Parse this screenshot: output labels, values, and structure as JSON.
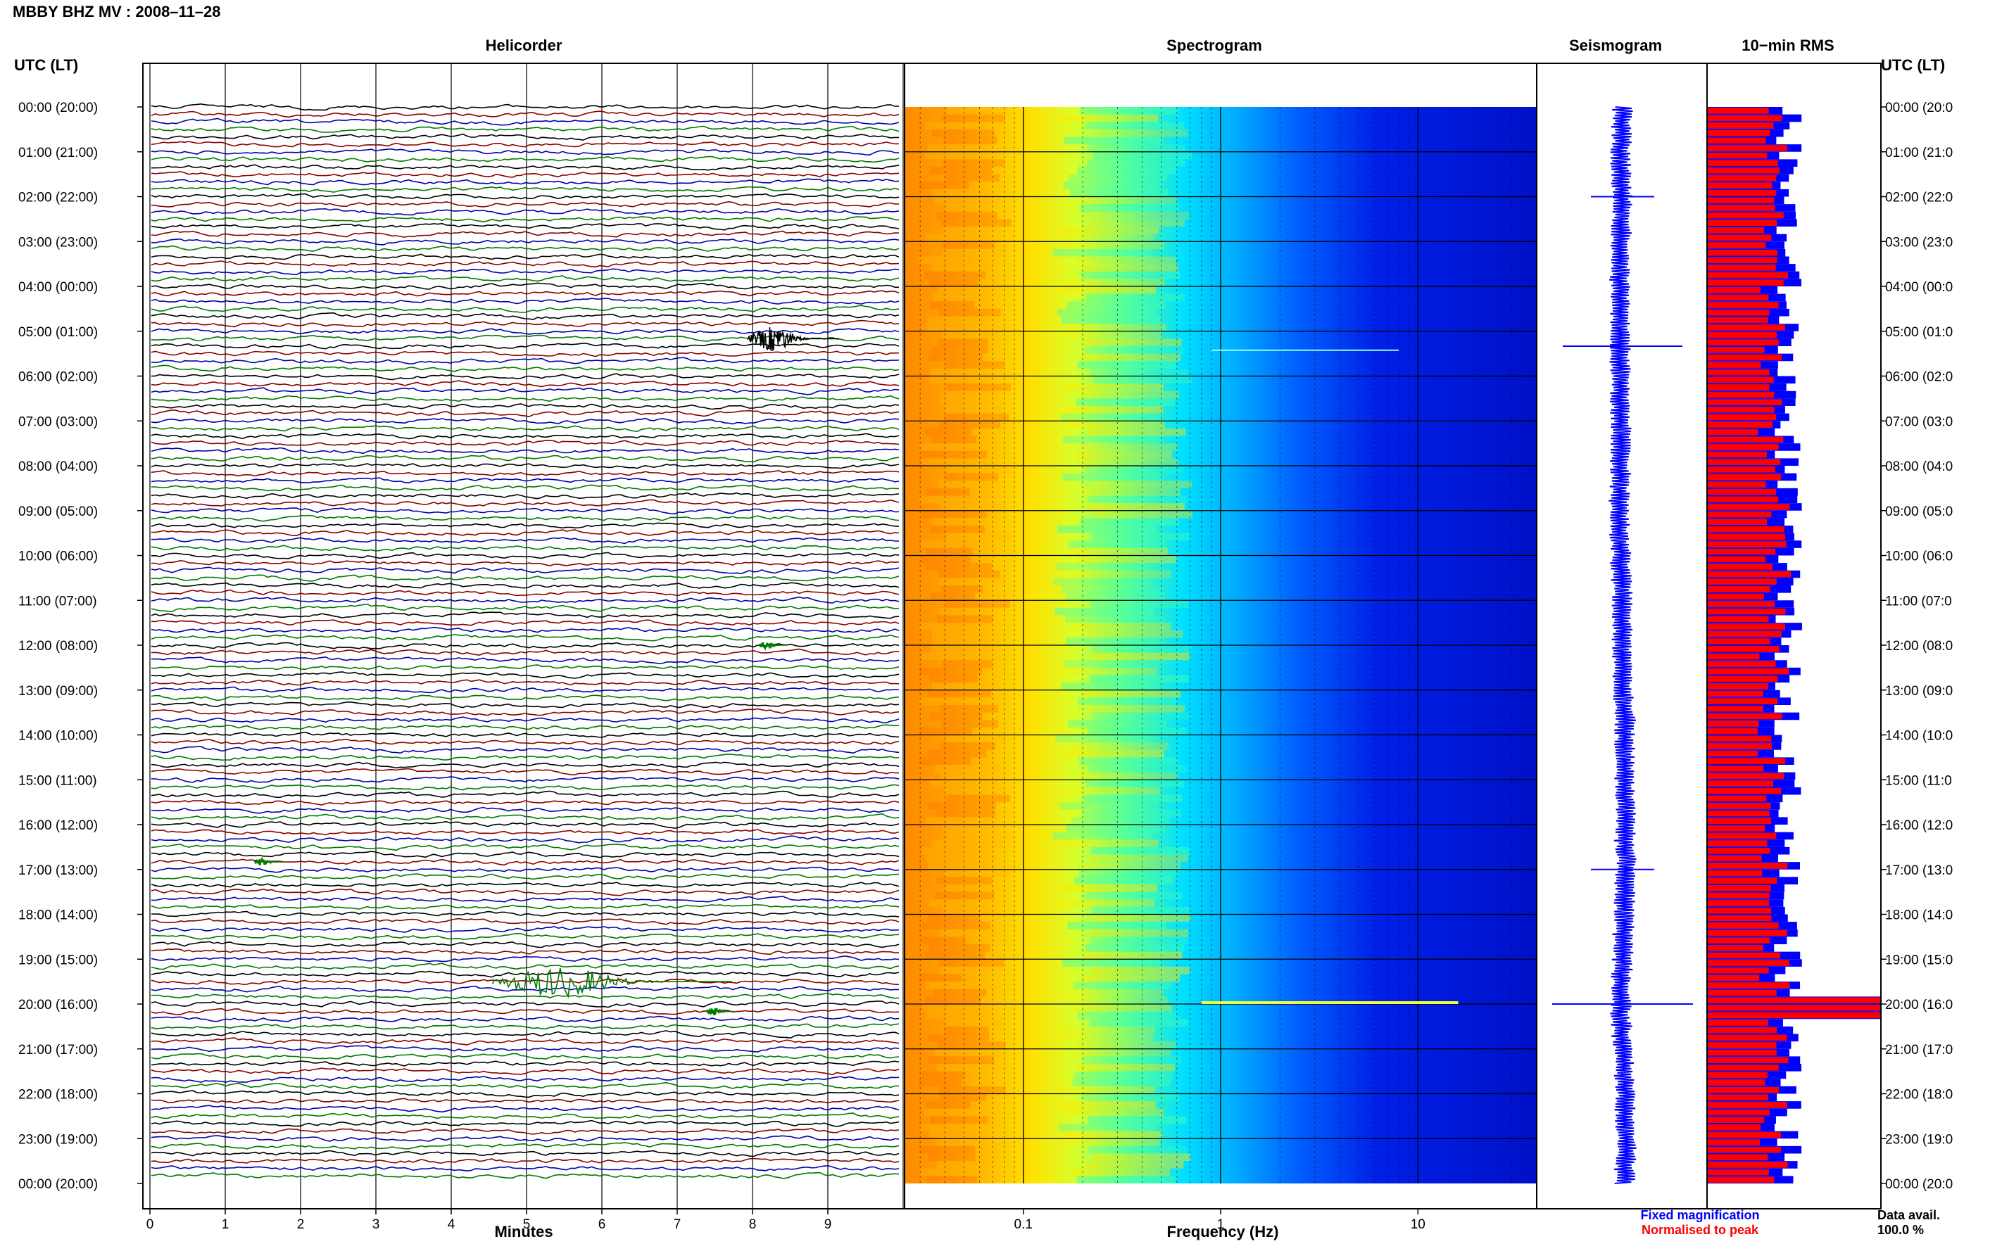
{
  "header": {
    "title": "MBBY BHZ MV : 2008–11–28"
  },
  "panels": {
    "helicorder": "Helicorder",
    "spectrogram": "Spectrogram",
    "seismogram": "Seismogram",
    "rms": "10−min RMS"
  },
  "time_axis": {
    "left_header": "UTC (LT)",
    "right_header": "UTC (LT)",
    "labels_left": [
      "00:00 (20:00)",
      "01:00 (21:00)",
      "02:00 (22:00)",
      "03:00 (23:00)",
      "04:00 (00:00)",
      "05:00 (01:00)",
      "06:00 (02:00)",
      "07:00 (03:00)",
      "08:00 (04:00)",
      "09:00 (05:00)",
      "10:00 (06:00)",
      "11:00 (07:00)",
      "12:00 (08:00)",
      "13:00 (09:00)",
      "14:00 (10:00)",
      "15:00 (11:00)",
      "16:00 (12:00)",
      "17:00 (13:00)",
      "18:00 (14:00)",
      "19:00 (15:00)",
      "20:00 (16:00)",
      "21:00 (17:00)",
      "22:00 (18:00)",
      "23:00 (19:00)",
      "00:00 (20:00)"
    ],
    "labels_right": [
      "00:00 (20:0",
      "01:00 (21:0",
      "02:00 (22:0",
      "03:00 (23:0",
      "04:00 (00:0",
      "05:00 (01:0",
      "06:00 (02:0",
      "07:00 (03:0",
      "08:00 (04:0",
      "09:00 (05:0",
      "10:00 (06:0",
      "11:00 (07:0",
      "12:00 (08:0",
      "13:00 (09:0",
      "14:00 (10:0",
      "15:00 (11:0",
      "16:00 (12:0",
      "17:00 (13:0",
      "18:00 (14:0",
      "19:00 (15:0",
      "20:00 (16:0",
      "21:00 (17:0",
      "22:00 (18:0",
      "23:00 (19:0",
      "00:00 (20:0"
    ]
  },
  "helicorder_axis": {
    "xlabel": "Minutes",
    "ticks": [
      "0",
      "1",
      "2",
      "3",
      "4",
      "5",
      "6",
      "7",
      "8",
      "9"
    ]
  },
  "spectrogram_axis": {
    "xlabel": "Frequency (Hz)",
    "ticks": [
      "0.1",
      "1",
      "10"
    ]
  },
  "legend": {
    "fixed": "Fixed magnification",
    "normalised": "Normalised to peak",
    "data_avail_label": "Data avail.",
    "data_avail_value": "100.0 %",
    "colors": {
      "fixed": "#0000ff",
      "normalised": "#ff0000"
    }
  },
  "chart_data": [
    {
      "type": "line",
      "title": "Helicorder",
      "xlabel": "Minutes",
      "xlim": [
        0,
        10
      ],
      "rows_per_hour": 6,
      "trace_colors": [
        "#000000",
        "#8b0000",
        "#0000b0",
        "#007a00"
      ],
      "events": [
        {
          "time": "05:10",
          "minute": 8.3,
          "amplitude": "large"
        },
        {
          "time": "19:30",
          "minute": 5.5,
          "amplitude": "very large"
        },
        {
          "time": "20:10",
          "minute": 7.5,
          "amplitude": "small"
        },
        {
          "time": "12:00",
          "minute": 8.2,
          "amplitude": "small"
        },
        {
          "time": "16:50",
          "minute": 1.5,
          "amplitude": "small"
        }
      ]
    },
    {
      "type": "heatmap",
      "title": "Spectrogram",
      "xlabel": "Frequency (Hz)",
      "xscale": "log",
      "xlim": [
        0.025,
        40
      ],
      "colormap": "jet",
      "description_values": {
        "peak_band_hz": [
          0.03,
          0.07
        ],
        "falloff_hz": [
          0.3,
          2
        ]
      }
    },
    {
      "type": "line",
      "title": "Seismogram",
      "color": "#0000ff",
      "spikes_at": [
        "02:00",
        "05:20",
        "17:00",
        "20:00"
      ]
    },
    {
      "type": "bar",
      "title": "10−min RMS",
      "orientation": "horizontal",
      "series": [
        {
          "name": "Fixed magnification",
          "color": "#0000ff"
        },
        {
          "name": "Normalised to peak",
          "color": "#ff0000"
        }
      ],
      "peak_at": "20:00",
      "data_availability_percent": 100.0
    }
  ]
}
